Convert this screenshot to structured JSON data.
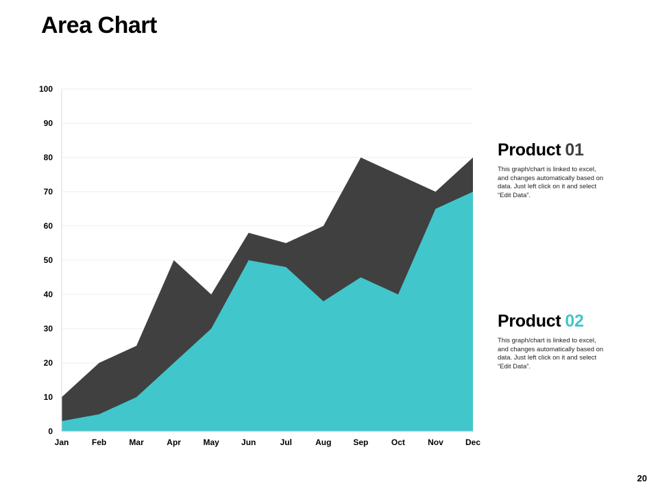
{
  "title": "Area Chart",
  "page_number": "20",
  "colors": {
    "product_01": "#404040",
    "product_02": "#41c6cb",
    "grid": "#eeeeee"
  },
  "legend": [
    {
      "label": "Product",
      "num": "01",
      "num_color": "#404040",
      "desc": "This graph/chart is linked to excel, and changes automatically based on data. Just left click on it and select “Edit Data”."
    },
    {
      "label": "Product",
      "num": "02",
      "num_color": "#41c6cb",
      "desc": "This graph/chart is linked to excel, and changes automatically based on data. Just left click on it and select “Edit Data”."
    }
  ],
  "chart_data": {
    "type": "area",
    "title": "",
    "xlabel": "",
    "ylabel": "",
    "categories": [
      "Jan",
      "Feb",
      "Mar",
      "Apr",
      "May",
      "Jun",
      "Jul",
      "Aug",
      "Sep",
      "Oct",
      "Nov",
      "Dec"
    ],
    "yticks": [
      0,
      10,
      20,
      30,
      40,
      50,
      60,
      70,
      80,
      90,
      100
    ],
    "ylim": [
      0,
      100
    ],
    "series": [
      {
        "name": "Product 01",
        "color": "#404040",
        "values": [
          10,
          20,
          25,
          50,
          40,
          58,
          55,
          60,
          80,
          75,
          70,
          80
        ]
      },
      {
        "name": "Product 02",
        "color": "#41c6cb",
        "values": [
          3,
          5,
          10,
          20,
          30,
          50,
          48,
          38,
          45,
          40,
          65,
          70
        ]
      }
    ],
    "grid": true,
    "legend_position": "right"
  }
}
